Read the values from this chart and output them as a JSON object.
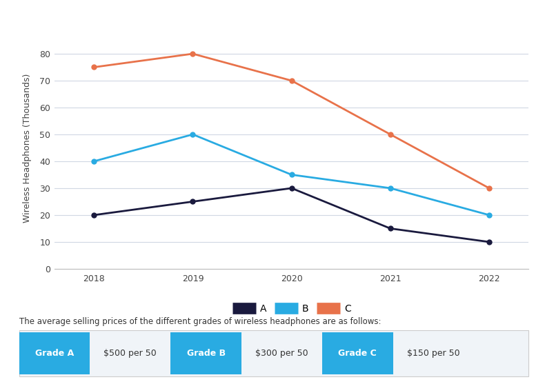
{
  "years": [
    2018,
    2019,
    2020,
    2021,
    2022
  ],
  "series_A": [
    20,
    25,
    30,
    15,
    10
  ],
  "series_B": [
    40,
    50,
    35,
    30,
    20
  ],
  "series_C": [
    75,
    80,
    70,
    50,
    30
  ],
  "color_A": "#1a1a3e",
  "color_B": "#29abe2",
  "color_C": "#e8724a",
  "ylabel": "Wireless Headphones (Thousands)",
  "ylim": [
    0,
    90
  ],
  "yticks": [
    0,
    10,
    20,
    30,
    40,
    50,
    60,
    70,
    80
  ],
  "background_color": "#ffffff",
  "grid_color": "#d0d7e3",
  "legend_labels": [
    "A",
    "B",
    "C"
  ],
  "subtitle": "The average selling prices of the different grades of wireless headphones are as follows:",
  "grade_labels": [
    "Grade A",
    "Grade B",
    "Grade C"
  ],
  "grade_prices": [
    "$500 per 50",
    "$300 per 50",
    "$150 per 50"
  ],
  "grade_button_color": "#29abe2",
  "grade_button_text_color": "#ffffff",
  "grade_price_text_color": "#333333",
  "marker": "o",
  "marker_size": 5,
  "line_width": 2.0,
  "axis_fontsize": 9,
  "tick_fontsize": 9,
  "legend_fontsize": 10
}
